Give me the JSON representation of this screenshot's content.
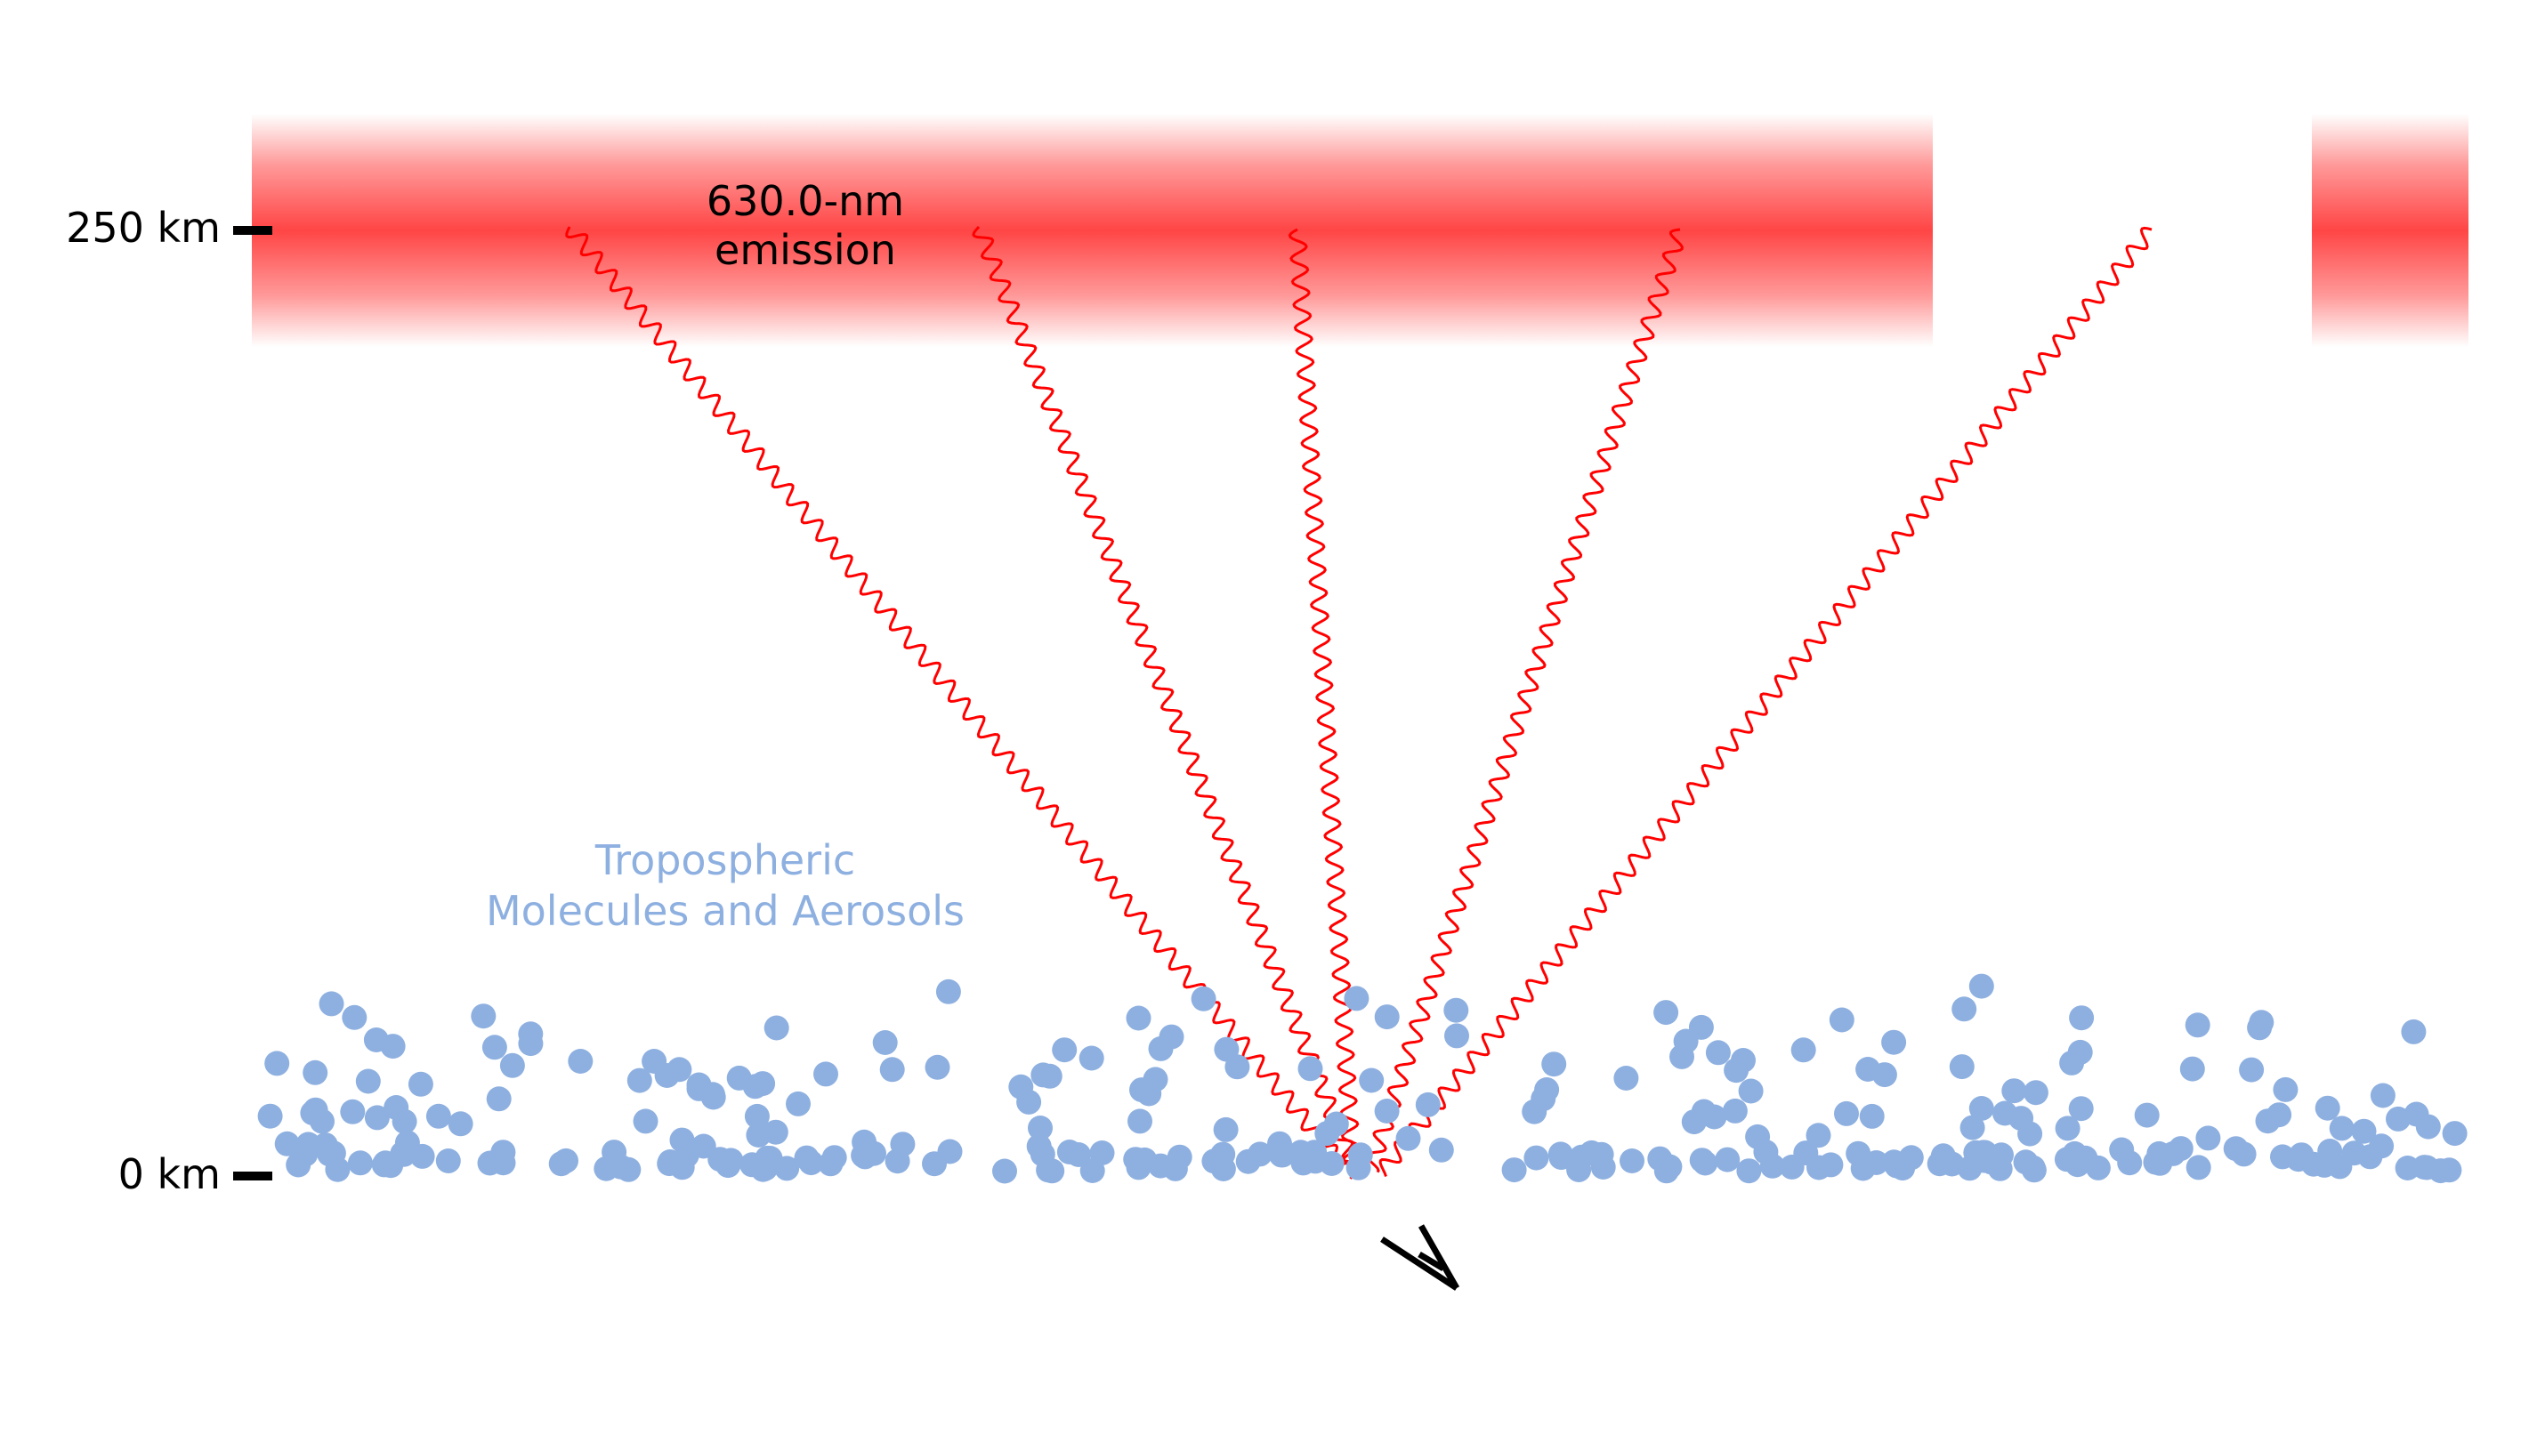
{
  "altitude_axis": {
    "top_label": "250 km",
    "bottom_label": "0 km"
  },
  "emission_label": {
    "line1": "630.0-nm",
    "line2": "emission"
  },
  "troposphere_label": {
    "line1": "Tropospheric",
    "line2": "Molecules and Aerosols"
  },
  "colors": {
    "emission_band": "#ff4545",
    "emission_ray": "#ff0000",
    "particle": "#8eb0e0",
    "text": "#000000",
    "tropo_text": "#8eb0e0"
  },
  "icons": {
    "observer": "eye-icon"
  }
}
